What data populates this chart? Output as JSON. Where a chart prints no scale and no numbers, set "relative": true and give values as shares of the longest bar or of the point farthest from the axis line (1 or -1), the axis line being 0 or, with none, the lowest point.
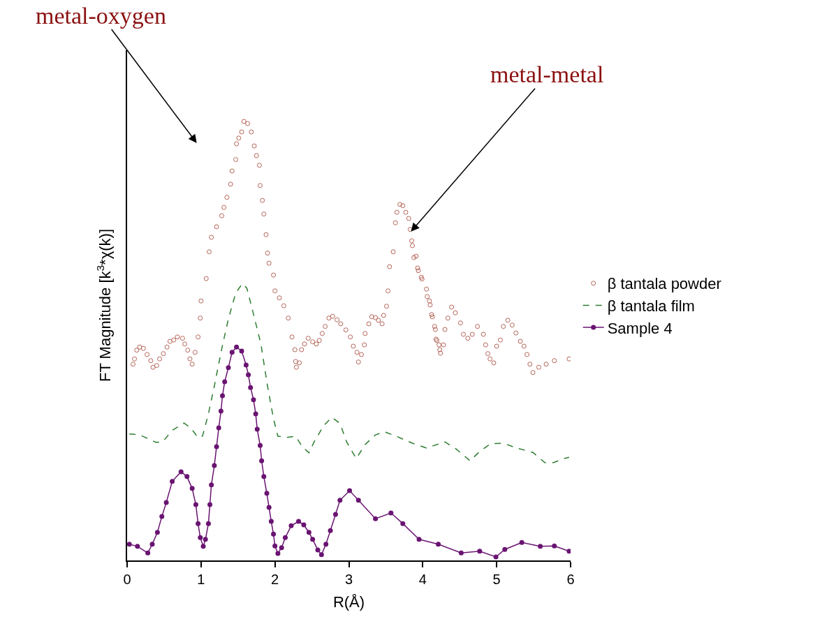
{
  "chart_data": {
    "type": "line",
    "relative": true,
    "xlabel": "R(Å)",
    "ylabel": "FT Magnitude [k$^{3}$*χ(k)]",
    "xlim": [
      0,
      6
    ],
    "xticks": [
      0,
      1,
      2,
      3,
      4,
      5,
      6
    ],
    "legend": "right",
    "tick_labels": "x",
    "annotations": [
      "metal-oxygen",
      {
        "text": "metal-metal",
        "x": 3.84,
        "y": 0.749
      }
    ],
    "series": [
      {
        "name": "β tantala powder",
        "type": "scatter",
        "marker": "circle",
        "color": "#b5655a",
        "x": [
          0.08,
          0.1,
          0.13,
          0.17,
          0.22,
          0.27,
          0.32,
          0.35,
          0.4,
          0.44,
          0.49,
          0.54,
          0.58,
          0.63,
          0.68,
          0.75,
          0.78,
          0.82,
          0.85,
          0.88,
          0.92,
          0.96,
          0.99,
          1.0,
          1.07,
          1.11,
          1.14,
          1.21,
          1.28,
          1.31,
          1.35,
          1.4,
          1.42,
          1.47,
          1.48,
          1.51,
          1.55,
          1.58,
          1.63,
          1.68,
          1.72,
          1.75,
          1.79,
          1.8,
          1.83,
          1.85,
          1.88,
          1.9,
          1.92,
          1.98,
          2.0,
          2.06,
          2.12,
          2.18,
          2.23,
          2.27,
          2.28,
          2.29,
          2.33,
          2.36,
          2.4,
          2.45,
          2.51,
          2.56,
          2.6,
          2.64,
          2.68,
          2.73,
          2.78,
          2.84,
          2.89,
          2.96,
          3.02,
          3.06,
          3.11,
          3.13,
          3.17,
          3.21,
          3.22,
          3.27,
          3.31,
          3.36,
          3.4,
          3.45,
          3.47,
          3.51,
          3.53,
          3.55,
          3.6,
          3.63,
          3.65,
          3.69,
          3.73,
          3.77,
          3.81,
          3.83,
          3.85,
          3.86,
          3.88,
          3.91,
          3.93,
          3.94,
          3.98,
          3.99,
          4.05,
          4.06,
          4.09,
          4.1,
          4.12,
          4.13,
          4.16,
          4.17,
          4.18,
          4.19,
          4.22,
          4.23,
          4.24,
          4.28,
          4.3,
          4.34,
          4.39,
          4.44,
          4.51,
          4.55,
          4.61,
          4.67,
          4.74,
          4.82,
          4.85,
          4.88,
          4.91,
          4.96,
          5.0,
          5.05,
          5.09,
          5.15,
          5.21,
          5.26,
          5.32,
          5.37,
          5.41,
          5.45,
          5.49,
          5.57,
          5.67,
          5.78,
          5.98
        ],
        "values": [
          0.447,
          0.459,
          0.479,
          0.486,
          0.483,
          0.469,
          0.455,
          0.44,
          0.444,
          0.459,
          0.471,
          0.486,
          0.499,
          0.502,
          0.509,
          0.506,
          0.493,
          0.479,
          0.459,
          0.447,
          0.474,
          0.509,
          0.552,
          0.591,
          0.642,
          0.703,
          0.736,
          0.76,
          0.785,
          0.804,
          0.827,
          0.857,
          0.887,
          0.913,
          0.949,
          0.962,
          0.976,
          1.0,
          0.995,
          0.976,
          0.944,
          0.922,
          0.9,
          0.854,
          0.82,
          0.789,
          0.742,
          0.7,
          0.677,
          0.65,
          0.614,
          0.598,
          0.58,
          0.552,
          0.509,
          0.48,
          0.453,
          0.44,
          0.45,
          0.48,
          0.493,
          0.506,
          0.498,
          0.493,
          0.501,
          0.517,
          0.533,
          0.552,
          0.556,
          0.548,
          0.539,
          0.525,
          0.509,
          0.488,
          0.474,
          0.452,
          0.469,
          0.491,
          0.517,
          0.539,
          0.555,
          0.553,
          0.547,
          0.539,
          0.558,
          0.579,
          0.614,
          0.669,
          0.703,
          0.769,
          0.793,
          0.811,
          0.808,
          0.793,
          0.779,
          0.754,
          0.728,
          0.717,
          0.69,
          0.693,
          0.666,
          0.66,
          0.645,
          0.641,
          0.618,
          0.601,
          0.591,
          0.582,
          0.56,
          0.555,
          0.533,
          0.526,
          0.504,
          0.501,
          0.491,
          0.48,
          0.472,
          0.491,
          0.526,
          0.552,
          0.577,
          0.564,
          0.541,
          0.515,
          0.506,
          0.515,
          0.533,
          0.515,
          0.491,
          0.471,
          0.459,
          0.45,
          0.488,
          0.502,
          0.533,
          0.547,
          0.536,
          0.518,
          0.499,
          0.488,
          0.469,
          0.447,
          0.428,
          0.44,
          0.447,
          0.455,
          0.459
        ]
      },
      {
        "name": "β tantala film",
        "marker": "none",
        "line_style": "dashed",
        "color": "#2e7d32",
        "x": [
          0.03,
          0.17,
          0.39,
          0.48,
          0.61,
          0.77,
          0.86,
          0.96,
          1.02,
          1.1,
          1.18,
          1.28,
          1.37,
          1.47,
          1.56,
          1.62,
          1.71,
          1.81,
          1.9,
          1.98,
          2.04,
          2.16,
          2.28,
          2.37,
          2.46,
          2.53,
          2.66,
          2.77,
          2.88,
          2.97,
          3.1,
          3.22,
          3.36,
          3.48,
          3.64,
          3.86,
          4.05,
          4.3,
          4.45,
          4.64,
          4.77,
          4.92,
          5.09,
          5.27,
          5.49,
          5.65,
          5.77,
          5.91,
          5.98
        ],
        "values": [
          0.288,
          0.286,
          0.269,
          0.27,
          0.296,
          0.313,
          0.302,
          0.28,
          0.283,
          0.334,
          0.397,
          0.482,
          0.55,
          0.609,
          0.631,
          0.62,
          0.561,
          0.493,
          0.397,
          0.323,
          0.283,
          0.28,
          0.283,
          0.259,
          0.245,
          0.27,
          0.307,
          0.326,
          0.312,
          0.27,
          0.232,
          0.264,
          0.286,
          0.293,
          0.283,
          0.267,
          0.256,
          0.27,
          0.254,
          0.227,
          0.248,
          0.266,
          0.267,
          0.256,
          0.246,
          0.223,
          0.223,
          0.232,
          0.235
        ]
      },
      {
        "name": "Sample 4",
        "marker": "circle",
        "line_style": "solid",
        "color": "#6a1472",
        "x": [
          0.03,
          0.14,
          0.28,
          0.34,
          0.41,
          0.47,
          0.53,
          0.61,
          0.73,
          0.81,
          0.88,
          0.93,
          0.96,
          0.99,
          1.03,
          1.06,
          1.1,
          1.12,
          1.14,
          1.18,
          1.21,
          1.24,
          1.27,
          1.29,
          1.32,
          1.37,
          1.42,
          1.48,
          1.55,
          1.61,
          1.64,
          1.67,
          1.71,
          1.74,
          1.76,
          1.8,
          1.82,
          1.85,
          1.89,
          1.92,
          1.95,
          1.98,
          2.0,
          2.04,
          2.09,
          2.14,
          2.22,
          2.32,
          2.39,
          2.46,
          2.51,
          2.58,
          2.63,
          2.69,
          2.75,
          2.82,
          2.88,
          3.01,
          3.13,
          3.36,
          3.57,
          3.73,
          3.95,
          4.21,
          4.52,
          4.77,
          4.99,
          5.11,
          5.34,
          5.59,
          5.78,
          5.98
        ],
        "values": [
          0.037,
          0.032,
          0.017,
          0.037,
          0.064,
          0.1,
          0.132,
          0.18,
          0.202,
          0.191,
          0.164,
          0.127,
          0.084,
          0.052,
          0.032,
          0.048,
          0.084,
          0.127,
          0.172,
          0.216,
          0.259,
          0.302,
          0.34,
          0.375,
          0.407,
          0.439,
          0.474,
          0.486,
          0.477,
          0.445,
          0.423,
          0.394,
          0.366,
          0.334,
          0.299,
          0.262,
          0.227,
          0.191,
          0.153,
          0.121,
          0.089,
          0.06,
          0.033,
          0.016,
          0.029,
          0.052,
          0.079,
          0.089,
          0.081,
          0.064,
          0.048,
          0.024,
          0.013,
          0.037,
          0.068,
          0.105,
          0.137,
          0.159,
          0.137,
          0.095,
          0.108,
          0.084,
          0.048,
          0.037,
          0.017,
          0.021,
          0.008,
          0.025,
          0.041,
          0.032,
          0.033,
          0.021
        ]
      }
    ]
  }
}
